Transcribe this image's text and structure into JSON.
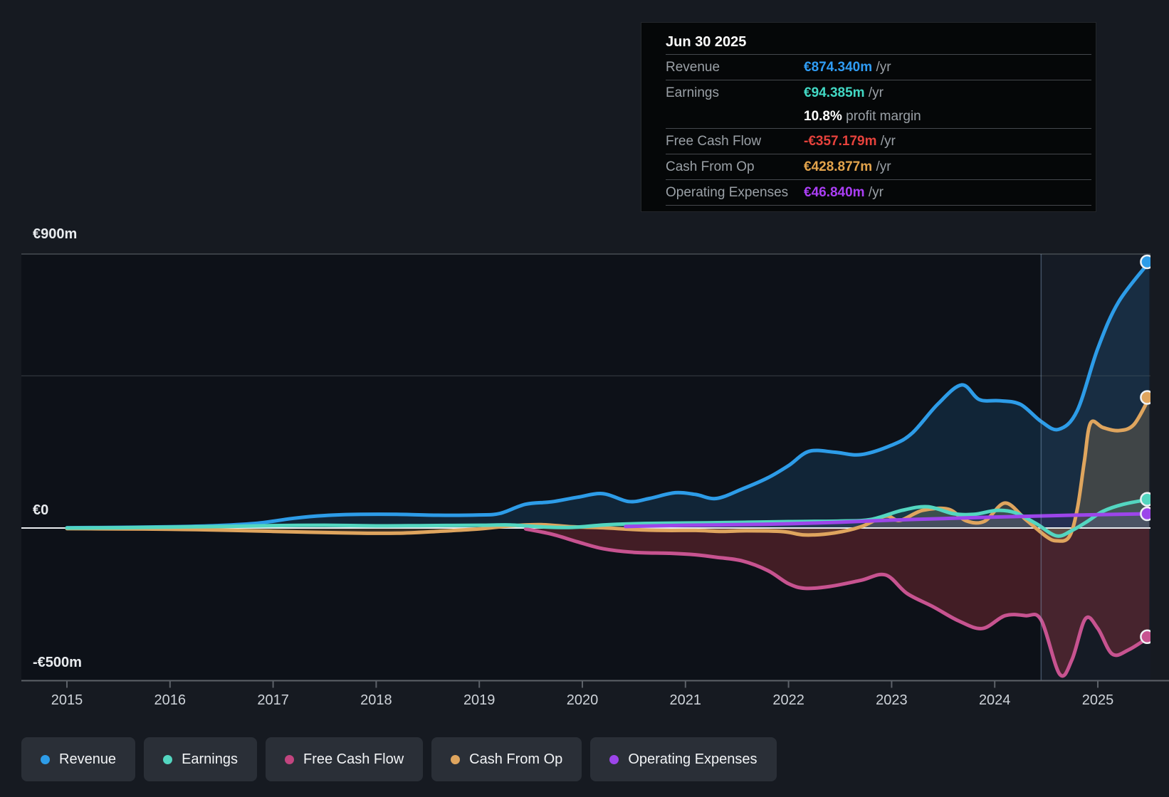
{
  "tooltip": {
    "date": "Jun 30 2025",
    "rows": [
      {
        "label": "Revenue",
        "value": "€874.340m",
        "suffix": "/yr",
        "color": "#2f9cf4"
      },
      {
        "label": "Earnings",
        "value": "€94.385m",
        "suffix": "/yr",
        "color": "#42d8c4"
      },
      {
        "label": "Free Cash Flow",
        "value": "-€357.179m",
        "suffix": "/yr",
        "color": "#e6423c"
      },
      {
        "label": "Cash From Op",
        "value": "€428.877m",
        "suffix": "/yr",
        "color": "#e3a44c"
      },
      {
        "label": "Operating Expenses",
        "value": "€46.840m",
        "suffix": "/yr",
        "color": "#aa3ef5"
      }
    ],
    "margin_bold": "10.8%",
    "margin_text": "profit margin"
  },
  "legend": [
    {
      "label": "Revenue",
      "color": "#2d9ce8"
    },
    {
      "label": "Earnings",
      "color": "#53d6c0"
    },
    {
      "label": "Free Cash Flow",
      "color": "#c2457f"
    },
    {
      "label": "Cash From Op",
      "color": "#dfa55e"
    },
    {
      "label": "Operating Expenses",
      "color": "#9c45ea"
    }
  ],
  "chart_data": {
    "type": "area",
    "unit": "€m (EUR millions)",
    "ylim": [
      -500,
      900
    ],
    "grid": true,
    "legend_position": "bottom",
    "y_ticks": [
      {
        "label": "€900m",
        "value": 900
      },
      {
        "label": "€0",
        "value": 0
      },
      {
        "label": "-€500m",
        "value": -500
      }
    ],
    "x_years": [
      2015,
      2016,
      2017,
      2018,
      2019,
      2020,
      2021,
      2022,
      2023,
      2024,
      2025
    ],
    "divider_year": 2024.45,
    "last_point_date": "Jun 30 2025",
    "series": [
      {
        "name": "Revenue",
        "color": "#2d9ce8",
        "fill": "rgba(45,140,215,0.16)",
        "points": [
          [
            2015,
            1
          ],
          [
            2015.5,
            2
          ],
          [
            2016,
            4
          ],
          [
            2016.45,
            8
          ],
          [
            2016.85,
            16
          ],
          [
            2017.2,
            32
          ],
          [
            2017.5,
            41
          ],
          [
            2017.85,
            45
          ],
          [
            2018.2,
            45
          ],
          [
            2018.6,
            42
          ],
          [
            2019,
            43
          ],
          [
            2019.2,
            48
          ],
          [
            2019.45,
            78
          ],
          [
            2019.7,
            86
          ],
          [
            2019.95,
            101
          ],
          [
            2020.2,
            113
          ],
          [
            2020.45,
            87
          ],
          [
            2020.65,
            97
          ],
          [
            2020.9,
            116
          ],
          [
            2021.1,
            110
          ],
          [
            2021.3,
            97
          ],
          [
            2021.55,
            128
          ],
          [
            2021.8,
            165
          ],
          [
            2022,
            205
          ],
          [
            2022.2,
            252
          ],
          [
            2022.45,
            249
          ],
          [
            2022.7,
            241
          ],
          [
            2023,
            272
          ],
          [
            2023.2,
            312
          ],
          [
            2023.45,
            408
          ],
          [
            2023.68,
            470
          ],
          [
            2023.85,
            422
          ],
          [
            2024.05,
            418
          ],
          [
            2024.25,
            406
          ],
          [
            2024.45,
            350
          ],
          [
            2024.62,
            324
          ],
          [
            2024.8,
            385
          ],
          [
            2025,
            590
          ],
          [
            2025.2,
            742
          ],
          [
            2025.5,
            874.34
          ]
        ]
      },
      {
        "name": "Free Cash Flow",
        "color": "#c75390",
        "fill": "rgba(190,58,68,0.30)",
        "points": [
          [
            2019.45,
            -3
          ],
          [
            2019.7,
            -20
          ],
          [
            2019.95,
            -45
          ],
          [
            2020.2,
            -68
          ],
          [
            2020.5,
            -80
          ],
          [
            2020.85,
            -83
          ],
          [
            2021.1,
            -88
          ],
          [
            2021.3,
            -96
          ],
          [
            2021.55,
            -108
          ],
          [
            2021.8,
            -140
          ],
          [
            2022,
            -183
          ],
          [
            2022.16,
            -198
          ],
          [
            2022.4,
            -192
          ],
          [
            2022.7,
            -172
          ],
          [
            2022.94,
            -154
          ],
          [
            2023.15,
            -215
          ],
          [
            2023.4,
            -258
          ],
          [
            2023.65,
            -305
          ],
          [
            2023.88,
            -330
          ],
          [
            2024.1,
            -288
          ],
          [
            2024.3,
            -288
          ],
          [
            2024.45,
            -302
          ],
          [
            2024.63,
            -480
          ],
          [
            2024.75,
            -432
          ],
          [
            2024.88,
            -298
          ],
          [
            2025,
            -330
          ],
          [
            2025.14,
            -414
          ],
          [
            2025.3,
            -400
          ],
          [
            2025.5,
            -357.179
          ]
        ]
      },
      {
        "name": "Cash From Op",
        "color": "#dfa55e",
        "fill": "rgba(223,165,94,0.20)",
        "points": [
          [
            2015,
            -2
          ],
          [
            2015.5,
            -3
          ],
          [
            2016,
            -4
          ],
          [
            2016.5,
            -7
          ],
          [
            2017,
            -11
          ],
          [
            2017.65,
            -16
          ],
          [
            2018.2,
            -17
          ],
          [
            2018.6,
            -11
          ],
          [
            2019,
            -3
          ],
          [
            2019.3,
            7
          ],
          [
            2019.6,
            11
          ],
          [
            2019.9,
            4
          ],
          [
            2020.2,
            1
          ],
          [
            2020.5,
            -5
          ],
          [
            2020.8,
            -8
          ],
          [
            2021.1,
            -8
          ],
          [
            2021.35,
            -11
          ],
          [
            2021.6,
            -9
          ],
          [
            2021.95,
            -12
          ],
          [
            2022.16,
            -23
          ],
          [
            2022.45,
            -16
          ],
          [
            2022.7,
            4
          ],
          [
            2022.94,
            39
          ],
          [
            2023.08,
            25
          ],
          [
            2023.3,
            58
          ],
          [
            2023.55,
            62
          ],
          [
            2023.72,
            24
          ],
          [
            2023.9,
            22
          ],
          [
            2024.1,
            82
          ],
          [
            2024.3,
            28
          ],
          [
            2024.5,
            -28
          ],
          [
            2024.6,
            -42
          ],
          [
            2024.72,
            -30
          ],
          [
            2024.8,
            60
          ],
          [
            2024.87,
            221
          ],
          [
            2024.93,
            345
          ],
          [
            2025.05,
            330
          ],
          [
            2025.2,
            320
          ],
          [
            2025.35,
            340
          ],
          [
            2025.5,
            428.877
          ]
        ]
      },
      {
        "name": "Earnings",
        "color": "#53d6c0",
        "fill": "rgba(83,214,192,0.12)",
        "points": [
          [
            2015,
            0
          ],
          [
            2015.5,
            1
          ],
          [
            2016,
            3
          ],
          [
            2016.5,
            5
          ],
          [
            2017,
            8
          ],
          [
            2017.5,
            9
          ],
          [
            2018,
            7
          ],
          [
            2018.5,
            8
          ],
          [
            2019,
            9
          ],
          [
            2019.3,
            10
          ],
          [
            2019.6,
            4
          ],
          [
            2019.9,
            2
          ],
          [
            2020.2,
            10
          ],
          [
            2020.5,
            14
          ],
          [
            2020.8,
            16
          ],
          [
            2021.2,
            17
          ],
          [
            2021.6,
            19
          ],
          [
            2022,
            21
          ],
          [
            2022.5,
            23
          ],
          [
            2022.8,
            28
          ],
          [
            2023.1,
            58
          ],
          [
            2023.35,
            70
          ],
          [
            2023.6,
            47
          ],
          [
            2023.8,
            45
          ],
          [
            2024.02,
            58
          ],
          [
            2024.2,
            50
          ],
          [
            2024.4,
            15
          ],
          [
            2024.6,
            -26
          ],
          [
            2024.75,
            -8
          ],
          [
            2024.9,
            22
          ],
          [
            2025.05,
            55
          ],
          [
            2025.25,
            78
          ],
          [
            2025.5,
            94.385
          ]
        ]
      },
      {
        "name": "Operating Expenses",
        "color": "#9c45ea",
        "fill": "rgba(156,69,234,0.10)",
        "points": [
          [
            2020.42,
            5
          ],
          [
            2021,
            9
          ],
          [
            2021.5,
            11
          ],
          [
            2022,
            14
          ],
          [
            2022.5,
            19
          ],
          [
            2023,
            26
          ],
          [
            2023.5,
            31
          ],
          [
            2024,
            36
          ],
          [
            2024.5,
            40
          ],
          [
            2025,
            44
          ],
          [
            2025.5,
            46.84
          ]
        ]
      }
    ]
  }
}
